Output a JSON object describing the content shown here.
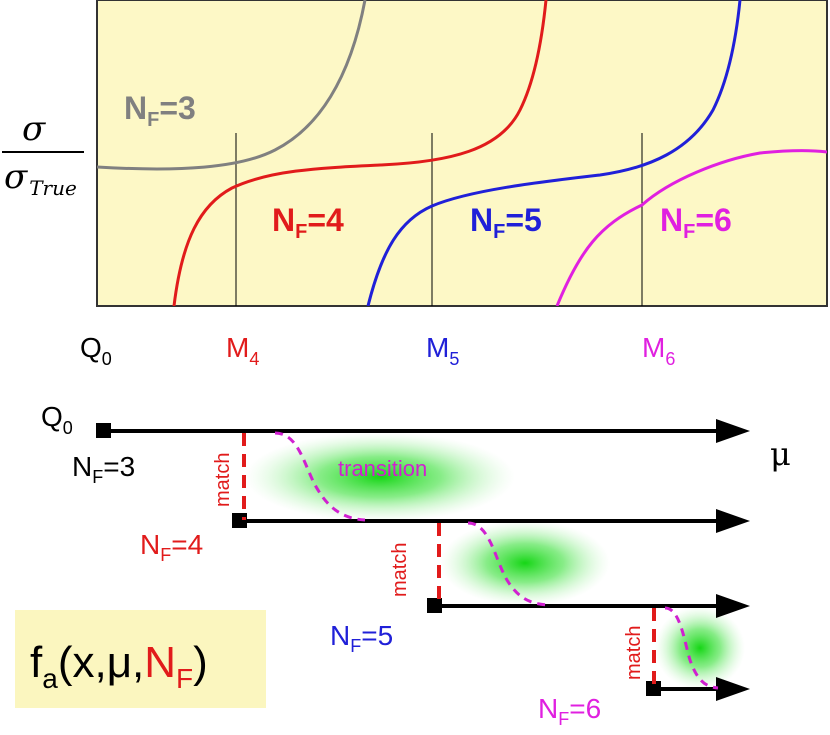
{
  "colors": {
    "panel_bg": "#fdf8c6",
    "gray": "#808080",
    "red": "#e11b1b",
    "blue": "#2020d8",
    "magenta": "#e020e0",
    "black": "#000000",
    "green": "#22dd22",
    "formula_bg": "#fbf6bf"
  },
  "top_plot": {
    "y_label_num": "σ",
    "y_label_den_sym": "σ",
    "y_label_den_sub": "True",
    "curves": [
      {
        "label": "N",
        "sub": "F",
        "value": "=3"
      },
      {
        "label": "N",
        "sub": "F",
        "value": "=4"
      },
      {
        "label": "N",
        "sub": "F",
        "value": "=5"
      },
      {
        "label": "N",
        "sub": "F",
        "value": "=6"
      }
    ],
    "thresholds": [
      {
        "label": "Q",
        "sub": "0"
      },
      {
        "label": "M",
        "sub": "4"
      },
      {
        "label": "M",
        "sub": "5"
      },
      {
        "label": "M",
        "sub": "6"
      }
    ]
  },
  "bottom_scheme": {
    "start_label": "Q",
    "start_sub": "0",
    "axis_label": "μ",
    "match_label": "match",
    "transition_label": "transition",
    "flavor_lines": [
      {
        "label": "N",
        "sub": "F",
        "value": "=3"
      },
      {
        "label": "N",
        "sub": "F",
        "value": "=4"
      },
      {
        "label": "N",
        "sub": "F",
        "value": "=5"
      },
      {
        "label": "N",
        "sub": "F",
        "value": "=6"
      }
    ]
  },
  "formula": {
    "f": "f",
    "f_sub": "a",
    "args": "(x,μ,",
    "nf": "N",
    "nf_sub": "F",
    "close": ")"
  }
}
